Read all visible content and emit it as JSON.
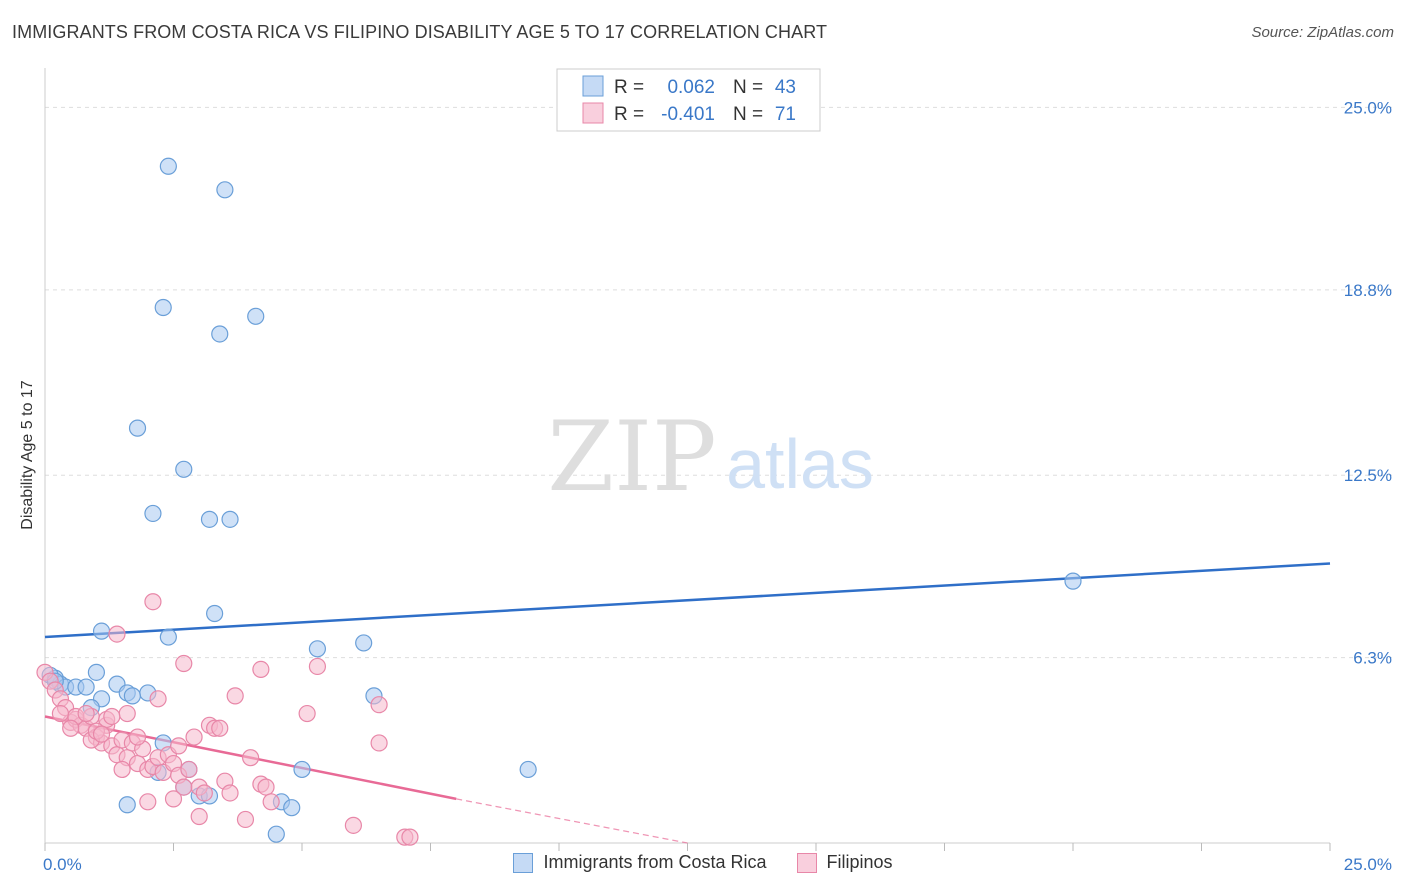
{
  "title": "IMMIGRANTS FROM COSTA RICA VS FILIPINO DISABILITY AGE 5 TO 17 CORRELATION CHART",
  "source": "Source: ZipAtlas.com",
  "watermark": {
    "zip": "ZIP",
    "atlas": "atlas"
  },
  "colors": {
    "blue_fill": "#a8c8f0",
    "blue_stroke": "#6a9fd8",
    "blue_line": "#2f6fc8",
    "pink_fill": "#f5b8cc",
    "pink_stroke": "#e887a8",
    "pink_line": "#e86a96",
    "axis_text": "#3a78c8",
    "grid": "#dddddd"
  },
  "legend_top": {
    "rows": [
      {
        "r_label": "R =",
        "r_value": "0.062",
        "n_label": "N =",
        "n_value": "43",
        "color": "blue"
      },
      {
        "r_label": "R =",
        "r_value": "-0.401",
        "n_label": "N =",
        "n_value": "71",
        "color": "pink"
      }
    ]
  },
  "chart_data": {
    "type": "scatter",
    "xlabel": "",
    "ylabel": "Disability Age 5 to 17",
    "xlim": [
      0,
      25
    ],
    "ylim": [
      0,
      26
    ],
    "x_tick_labels": [
      "0.0%",
      "25.0%"
    ],
    "y_ticks": [
      6.3,
      12.5,
      18.8,
      25.0
    ],
    "y_tick_labels": [
      "6.3%",
      "12.5%",
      "18.8%",
      "25.0%"
    ],
    "grid": "horizontal dashed",
    "series": [
      {
        "name": "Immigrants from Costa Rica",
        "color": "blue",
        "points": [
          [
            2.4,
            23.0
          ],
          [
            3.5,
            22.2
          ],
          [
            2.3,
            18.2
          ],
          [
            4.1,
            17.9
          ],
          [
            3.4,
            17.3
          ],
          [
            1.8,
            14.1
          ],
          [
            2.7,
            12.7
          ],
          [
            2.1,
            11.2
          ],
          [
            3.2,
            11.0
          ],
          [
            3.6,
            11.0
          ],
          [
            3.3,
            7.8
          ],
          [
            1.1,
            7.2
          ],
          [
            2.4,
            7.0
          ],
          [
            5.3,
            6.6
          ],
          [
            6.2,
            6.8
          ],
          [
            1.0,
            5.8
          ],
          [
            0.2,
            5.6
          ],
          [
            0.3,
            5.4
          ],
          [
            0.4,
            5.3
          ],
          [
            0.6,
            5.3
          ],
          [
            0.8,
            5.3
          ],
          [
            1.4,
            5.4
          ],
          [
            1.6,
            5.1
          ],
          [
            2.0,
            5.1
          ],
          [
            1.1,
            4.9
          ],
          [
            1.7,
            5.0
          ],
          [
            0.9,
            4.6
          ],
          [
            6.4,
            5.0
          ],
          [
            0.1,
            5.7
          ],
          [
            2.3,
            3.4
          ],
          [
            2.8,
            2.5
          ],
          [
            2.2,
            2.4
          ],
          [
            5.0,
            2.5
          ],
          [
            9.4,
            2.5
          ],
          [
            2.7,
            1.9
          ],
          [
            3.0,
            1.6
          ],
          [
            3.2,
            1.6
          ],
          [
            4.6,
            1.4
          ],
          [
            4.8,
            1.2
          ],
          [
            1.6,
            1.3
          ],
          [
            4.5,
            0.3
          ],
          [
            20.0,
            8.9
          ],
          [
            0.2,
            5.5
          ]
        ]
      },
      {
        "name": "Filipinos",
        "color": "pink",
        "points": [
          [
            0.0,
            5.8
          ],
          [
            0.1,
            5.5
          ],
          [
            0.2,
            5.2
          ],
          [
            0.3,
            4.9
          ],
          [
            0.4,
            4.6
          ],
          [
            0.5,
            4.1
          ],
          [
            0.6,
            4.2
          ],
          [
            0.7,
            4.0
          ],
          [
            0.8,
            3.9
          ],
          [
            0.9,
            4.3
          ],
          [
            1.0,
            3.6
          ],
          [
            1.1,
            3.4
          ],
          [
            1.2,
            4.0
          ],
          [
            1.3,
            3.3
          ],
          [
            1.4,
            3.0
          ],
          [
            1.5,
            3.5
          ],
          [
            1.6,
            2.9
          ],
          [
            1.7,
            3.4
          ],
          [
            1.8,
            2.7
          ],
          [
            1.9,
            3.2
          ],
          [
            2.0,
            2.5
          ],
          [
            2.1,
            2.6
          ],
          [
            2.2,
            2.9
          ],
          [
            2.3,
            2.4
          ],
          [
            2.4,
            3.0
          ],
          [
            2.5,
            2.7
          ],
          [
            2.6,
            2.3
          ],
          [
            2.7,
            1.9
          ],
          [
            2.8,
            2.5
          ],
          [
            3.0,
            1.9
          ],
          [
            3.1,
            1.7
          ],
          [
            3.2,
            4.0
          ],
          [
            3.3,
            3.9
          ],
          [
            3.5,
            2.1
          ],
          [
            3.6,
            1.7
          ],
          [
            3.7,
            5.0
          ],
          [
            4.0,
            2.9
          ],
          [
            4.2,
            2.0
          ],
          [
            4.3,
            1.9
          ],
          [
            4.4,
            1.4
          ],
          [
            1.4,
            7.1
          ],
          [
            2.1,
            8.2
          ],
          [
            2.7,
            6.1
          ],
          [
            4.2,
            5.9
          ],
          [
            5.3,
            6.0
          ],
          [
            5.1,
            4.4
          ],
          [
            6.5,
            4.7
          ],
          [
            6.5,
            3.4
          ],
          [
            1.6,
            4.4
          ],
          [
            2.2,
            4.9
          ],
          [
            0.6,
            4.3
          ],
          [
            0.9,
            3.5
          ],
          [
            1.2,
            4.2
          ],
          [
            1.5,
            2.5
          ],
          [
            2.0,
            1.4
          ],
          [
            2.5,
            1.5
          ],
          [
            3.0,
            0.9
          ],
          [
            3.9,
            0.8
          ],
          [
            6.0,
            0.6
          ],
          [
            7.0,
            0.2
          ],
          [
            7.1,
            0.2
          ],
          [
            1.0,
            3.8
          ],
          [
            1.3,
            4.3
          ],
          [
            0.3,
            4.4
          ],
          [
            0.8,
            4.4
          ],
          [
            2.9,
            3.6
          ],
          [
            1.8,
            3.6
          ],
          [
            2.6,
            3.3
          ],
          [
            3.4,
            3.9
          ],
          [
            1.1,
            3.7
          ],
          [
            0.5,
            3.9
          ]
        ]
      }
    ],
    "trendlines": [
      {
        "series": "Immigrants from Costa Rica",
        "x": [
          0,
          25
        ],
        "y": [
          7.0,
          9.5
        ]
      },
      {
        "series": "Filipinos",
        "x": [
          0,
          8.0
        ],
        "y": [
          4.3,
          1.5
        ],
        "dashed_extension": {
          "x": [
            8.0,
            12.5
          ],
          "y": [
            1.5,
            0.0
          ]
        }
      }
    ]
  }
}
